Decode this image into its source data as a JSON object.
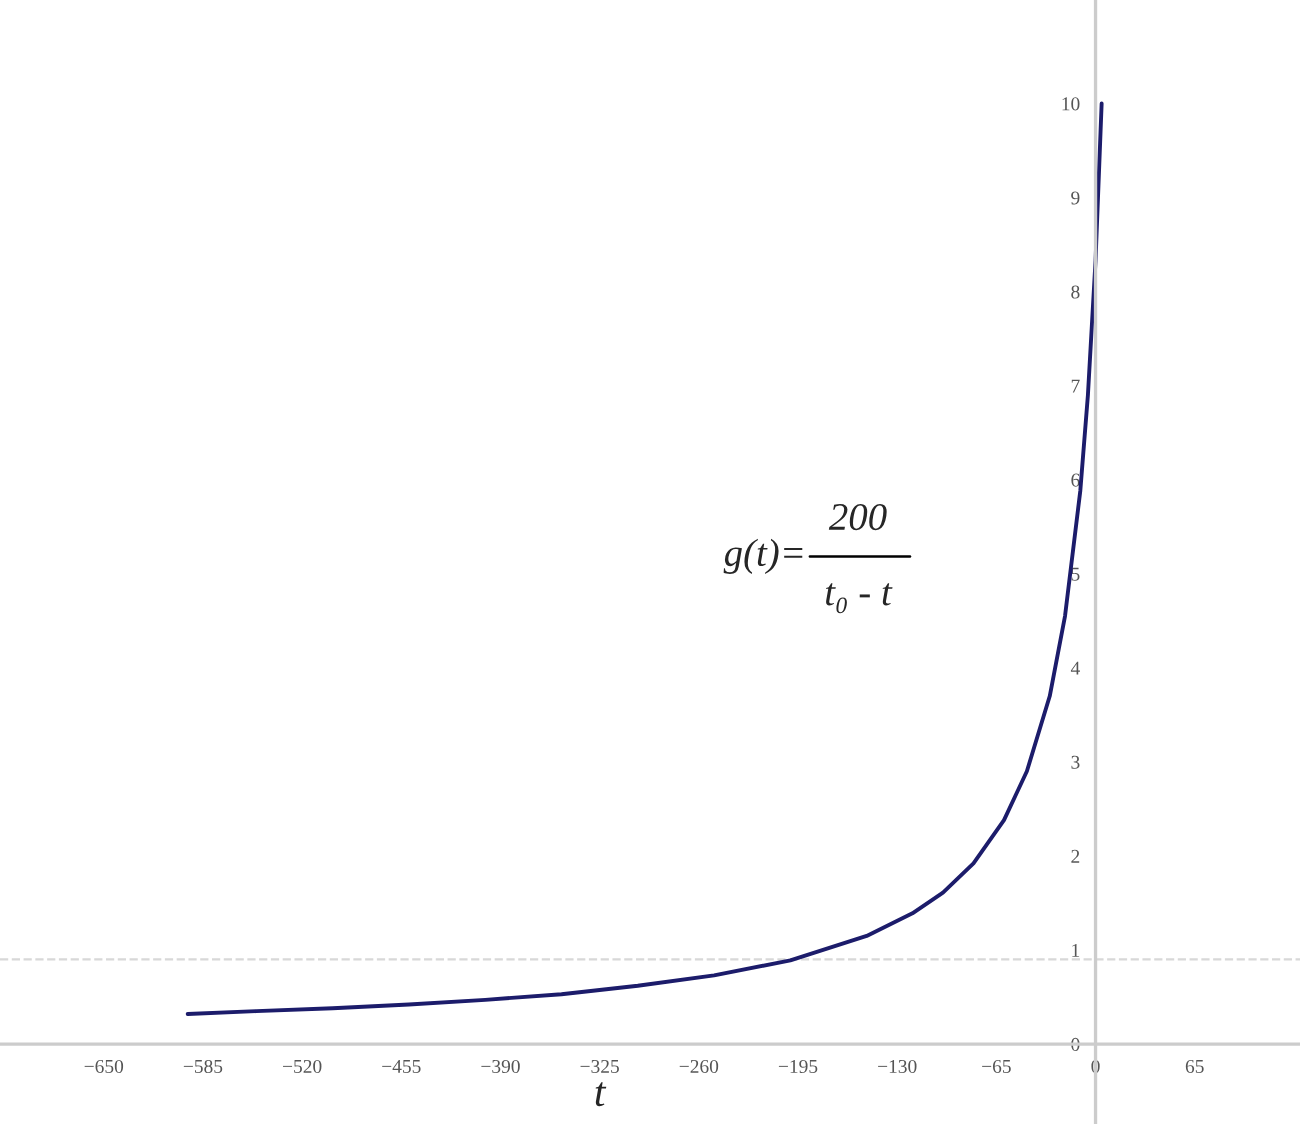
{
  "chart_data": {
    "type": "line",
    "xlabel": "t",
    "annotations": [
      "g(t)=",
      "200",
      "t₀ - t"
    ],
    "series": [
      {
        "color": "#1c1c6b",
        "x": [
          -595,
          -550,
          -500,
          -450,
          -400,
          -350,
          -300,
          -250,
          -200,
          -150,
          -120,
          -100,
          -80,
          -60,
          -45,
          -30,
          -20,
          -10,
          -5,
          0,
          4
        ],
        "values": [
          0.32,
          0.35,
          0.38,
          0.42,
          0.47,
          0.53,
          0.62,
          0.73,
          0.89,
          1.15,
          1.39,
          1.61,
          1.92,
          2.38,
          2.9,
          3.7,
          4.55,
          5.88,
          6.9,
          8.33,
          10
        ]
      }
    ],
    "xlim": [
      -718,
      134
    ],
    "ylim": [
      -0.85,
      11.1
    ],
    "xticks": [
      -650,
      -585,
      -520,
      -455,
      -390,
      -325,
      -260,
      -195,
      -130,
      -65,
      0,
      65
    ],
    "yticks": [
      0,
      1,
      2,
      3,
      4,
      5,
      6,
      7,
      8,
      9,
      10
    ],
    "ref_lines": [
      {
        "axis": "y",
        "value": 0.9,
        "color": "#d8d8d8",
        "line_style": "dashed"
      }
    ],
    "grid": false,
    "legend": false,
    "marker": "none",
    "line_style": "solid"
  }
}
